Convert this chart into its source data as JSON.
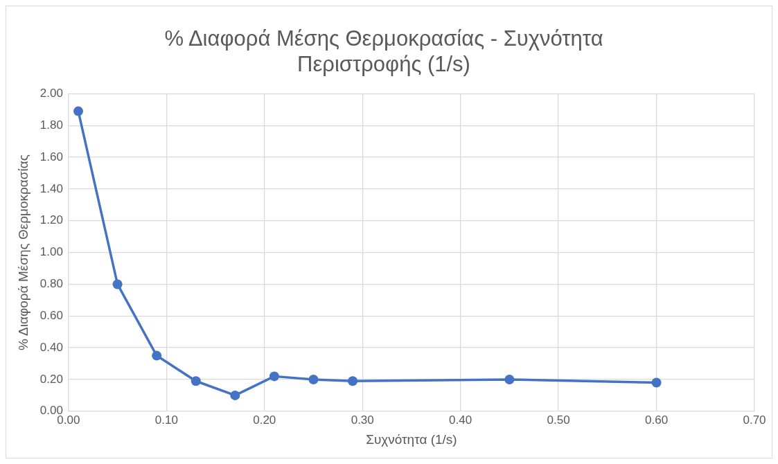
{
  "chart_data": {
    "type": "line",
    "title": "% Διαφορά Μέσης Θερμοκρασίας - Συχνότητα Περιστροφής (1/s)",
    "xlabel": "Συχνότητα (1/s)",
    "ylabel": "% Διαφορά Μέσης Θερμοκρασίας",
    "x": [
      0.01,
      0.05,
      0.09,
      0.13,
      0.17,
      0.21,
      0.25,
      0.29,
      0.45,
      0.6
    ],
    "series": [
      {
        "color": "#4472c4",
        "values": [
          1.89,
          0.8,
          0.35,
          0.19,
          0.1,
          0.22,
          0.2,
          0.19,
          0.2,
          0.18
        ]
      }
    ],
    "xlim": [
      0,
      0.7
    ],
    "xticks": [
      {
        "value": 0,
        "label": "0.00"
      },
      {
        "value": 0.1,
        "label": "0.10"
      },
      {
        "value": 0.2,
        "label": "0.20"
      },
      {
        "value": 0.3,
        "label": "0.30"
      },
      {
        "value": 0.4,
        "label": "0.40"
      },
      {
        "value": 0.5,
        "label": "0.50"
      },
      {
        "value": 0.6,
        "label": "0.60"
      },
      {
        "value": 0.7,
        "label": "0.70"
      }
    ],
    "ylim": [
      0,
      2
    ],
    "yticks": [
      {
        "value": 0,
        "label": "0.00"
      },
      {
        "value": 0.2,
        "label": "0.20"
      },
      {
        "value": 0.4,
        "label": "0.40"
      },
      {
        "value": 0.6,
        "label": "0.60"
      },
      {
        "value": 0.8,
        "label": "0.80"
      },
      {
        "value": 1,
        "label": "1.00"
      },
      {
        "value": 1.2,
        "label": "1.20"
      },
      {
        "value": 1.4,
        "label": "1.40"
      },
      {
        "value": 1.6,
        "label": "1.60"
      },
      {
        "value": 1.8,
        "label": "1.80"
      },
      {
        "value": 2,
        "label": "2.00"
      }
    ],
    "grid": true,
    "legend": false,
    "marker": "circle",
    "line_style": "solid"
  }
}
